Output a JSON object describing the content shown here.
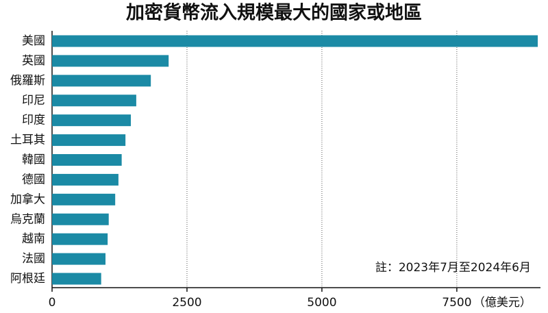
{
  "chart_data": {
    "type": "bar",
    "orientation": "horizontal",
    "title": "加密貨幣流入規模最大的國家或地區",
    "categories": [
      "美國",
      "英國",
      "俄羅斯",
      "印尼",
      "印度",
      "土耳其",
      "韓國",
      "德國",
      "加拿大",
      "烏克蘭",
      "越南",
      "法國",
      "阿根廷"
    ],
    "values": [
      9000,
      2160,
      1830,
      1560,
      1460,
      1360,
      1290,
      1230,
      1170,
      1050,
      1030,
      990,
      910
    ],
    "color": "#1b8aa5",
    "xlim": [
      0,
      9050
    ],
    "xticks": [
      0,
      2500,
      5000,
      7500
    ],
    "x_label": "（億美元）",
    "grid": true,
    "annotation": "註：2023年7月至2024年6月"
  }
}
